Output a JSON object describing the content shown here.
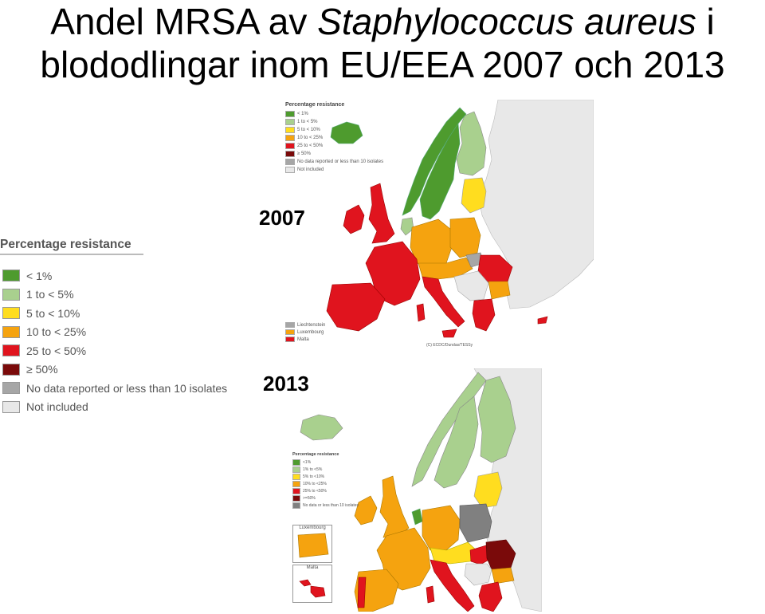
{
  "title": {
    "part1": "Andel MRSA av ",
    "italic": "Staphylococcus aureus",
    "part2": " i",
    "line2": "blododlingar inom EU/EEA 2007 och 2013"
  },
  "labels": {
    "year_2007": "2007",
    "year_2013": "2013"
  },
  "colors": {
    "lt1": "#4e9b2e",
    "1to5": "#a9d08e",
    "5to10": "#ffdd1f",
    "10to25": "#f5a30f",
    "25to50": "#e0141e",
    "ge50": "#7a0a0a",
    "nodata": "#a6a6a6",
    "notincluded": "#e8e8e8",
    "sea": "#ffffff"
  },
  "legend_main": {
    "title": "Percentage resistance",
    "items": [
      {
        "label": "< 1%",
        "color": "#4e9b2e"
      },
      {
        "label": "1 to < 5%",
        "color": "#a9d08e"
      },
      {
        "label": "5 to < 10%",
        "color": "#ffdd1f"
      },
      {
        "label": "10 to < 25%",
        "color": "#f5a30f"
      },
      {
        "label": "25 to < 50%",
        "color": "#e0141e"
      },
      {
        "label": "≥ 50%",
        "color": "#7a0a0a"
      },
      {
        "label": "No data reported or less than 10 isolates",
        "color": "#a6a6a6"
      },
      {
        "label": "Not included",
        "color": "#e8e8e8"
      }
    ]
  },
  "legend_2007": {
    "title": "Percentage resistance",
    "items": [
      {
        "label": "< 1%",
        "color": "#4e9b2e"
      },
      {
        "label": "1 to < 5%",
        "color": "#a9d08e"
      },
      {
        "label": "5 to < 10%",
        "color": "#ffdd1f"
      },
      {
        "label": "10 to < 25%",
        "color": "#f5a30f"
      },
      {
        "label": "25 to < 50%",
        "color": "#e0141e"
      },
      {
        "label": "≥ 50%",
        "color": "#7a0a0a"
      },
      {
        "label": "No data reported or less than 10 isolates",
        "color": "#a6a6a6"
      },
      {
        "label": "Not included",
        "color": "#e8e8e8"
      }
    ],
    "small_states": [
      {
        "label": "Liechtenstein",
        "color": "#a6a6a6"
      },
      {
        "label": "Luxembourg",
        "color": "#f5a30f"
      },
      {
        "label": "Malta",
        "color": "#e0141e"
      }
    ],
    "credit": "(C) ECDC/Dundas/TESSy"
  },
  "legend_2013": {
    "title": "Percentage resistance",
    "items": [
      {
        "label": "<1%",
        "color": "#4e9b2e"
      },
      {
        "label": "1% to <5%",
        "color": "#a9d08e"
      },
      {
        "label": "5% to <10%",
        "color": "#ffdd1f"
      },
      {
        "label": "10% to <25%",
        "color": "#f5a30f"
      },
      {
        "label": "25% to <50%",
        "color": "#e0141e"
      },
      {
        "label": ">=50%",
        "color": "#7a0a0a"
      },
      {
        "label": "No data or less than 10 isolates",
        "color": "#808080"
      }
    ],
    "inset_luxembourg": "Luxembourg",
    "inset_malta": "Malta"
  }
}
